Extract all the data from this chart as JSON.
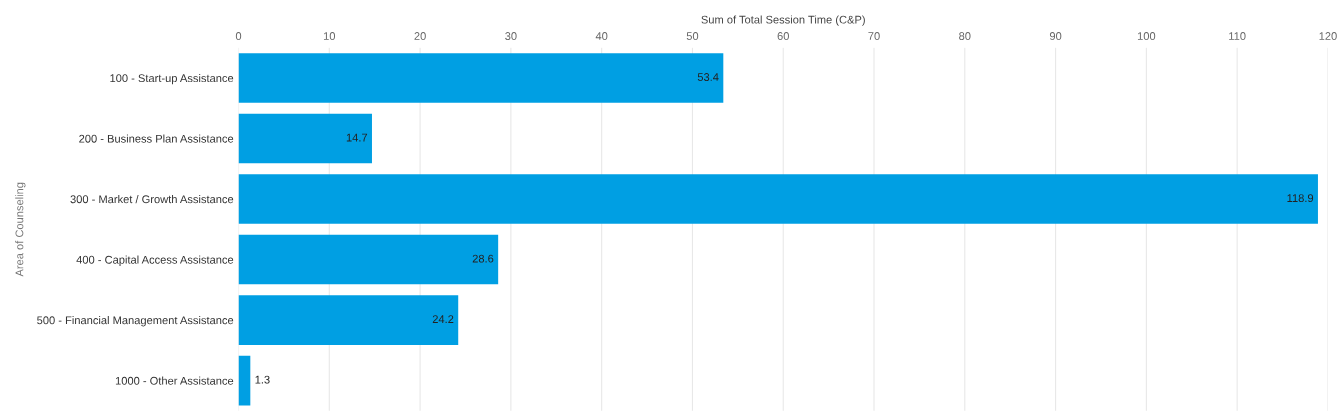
{
  "chart_data": {
    "type": "bar",
    "orientation": "horizontal",
    "xlabel": "Sum of Total Session Time (C&P)",
    "ylabel": "Area of Counseling",
    "categories": [
      "100 - Start-up Assistance",
      "200 - Business Plan Assistance",
      "300 - Market / Growth Assistance",
      "400 - Capital Access Assistance",
      "500 - Financial Management Assistance",
      "1000 - Other Assistance"
    ],
    "values": [
      53.4,
      14.7,
      118.9,
      28.6,
      24.2,
      1.3
    ],
    "color": "#009fe3",
    "xlim": [
      0,
      120
    ],
    "xticks": [
      0,
      10,
      20,
      30,
      40,
      50,
      60,
      70,
      80,
      90,
      100,
      110,
      120
    ],
    "grid": "x",
    "data_labels": true
  }
}
